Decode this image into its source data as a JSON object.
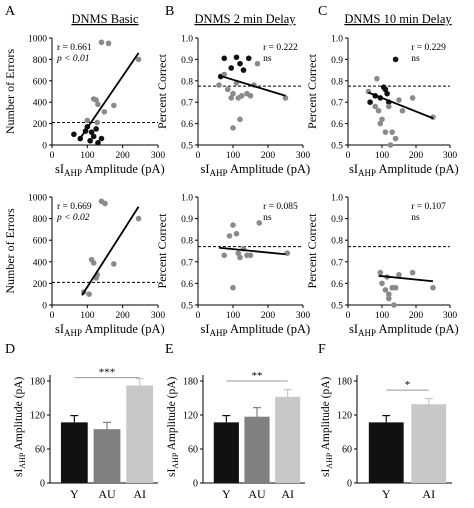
{
  "figure": {
    "panel_letters": [
      "A",
      "B",
      "C",
      "D",
      "E",
      "F"
    ],
    "column_titles": [
      "DNMS Basic",
      "DNMS 2 min Delay",
      "DNMS 10 min Delay"
    ]
  },
  "chart_data": [
    {
      "id": "A1",
      "type": "scatter",
      "title": "DNMS Basic",
      "xlabel_main": "sI",
      "xlabel_sub": "AHP",
      "xlabel_rest": " Amplitude (pA)",
      "ylabel": "Number of Errors",
      "xlim": [
        0,
        300
      ],
      "ylim": [
        0,
        1000
      ],
      "xticks": [
        0,
        100,
        200,
        300
      ],
      "yticks": [
        0,
        200,
        400,
        600,
        800,
        1000
      ],
      "reference_line_y": 210,
      "stats": [
        "r = 0.661",
        "p < 0.01"
      ],
      "regression": [
        [
          75,
          40
        ],
        [
          245,
          860
        ]
      ],
      "series": [
        {
          "color": "#111111",
          "points": [
            [
              62,
              100
            ],
            [
              80,
              60
            ],
            [
              95,
              130
            ],
            [
              100,
              170
            ],
            [
              108,
              40
            ],
            [
              118,
              80
            ],
            [
              125,
              150
            ],
            [
              130,
              20
            ],
            [
              140,
              60
            ],
            [
              112,
              120
            ]
          ]
        },
        {
          "color": "#8a8a8a",
          "points": [
            [
              100,
              230
            ],
            [
              118,
              430
            ],
            [
              125,
              420
            ],
            [
              130,
              380
            ],
            [
              140,
              960
            ],
            [
              148,
              310
            ],
            [
              160,
              950
            ],
            [
              175,
              370
            ],
            [
              245,
              800
            ],
            [
              128,
              210
            ]
          ]
        }
      ]
    },
    {
      "id": "B1",
      "type": "scatter",
      "title": "DNMS 2 min Delay",
      "xlabel_main": "sI",
      "xlabel_sub": "AHP",
      "xlabel_rest": " Amplitude (pA)",
      "ylabel": "Percent Correct",
      "xlim": [
        0,
        300
      ],
      "ylim": [
        0.5,
        1.0
      ],
      "xticks": [
        0,
        100,
        200,
        300
      ],
      "yticks": [
        0.5,
        0.6,
        0.7,
        0.8,
        0.9,
        1.0
      ],
      "reference_line_y": 0.775,
      "stats": [
        "r = 0.222",
        "ns"
      ],
      "regression": [
        [
          60,
          0.825
        ],
        [
          250,
          0.73
        ]
      ],
      "series": [
        {
          "color": "#111111",
          "points": [
            [
              65,
              0.82
            ],
            [
              75,
              0.905
            ],
            [
              95,
              0.86
            ],
            [
              110,
              0.91
            ],
            [
              120,
              0.88
            ],
            [
              130,
              0.85
            ],
            [
              145,
              0.905
            ]
          ]
        },
        {
          "color": "#8a8a8a",
          "points": [
            [
              60,
              0.78
            ],
            [
              75,
              0.83
            ],
            [
              85,
              0.76
            ],
            [
              95,
              0.72
            ],
            [
              100,
              0.74
            ],
            [
              110,
              0.79
            ],
            [
              115,
              0.72
            ],
            [
              120,
              0.62
            ],
            [
              125,
              0.73
            ],
            [
              140,
              0.74
            ],
            [
              150,
              0.73
            ],
            [
              160,
              0.78
            ],
            [
              170,
              0.88
            ],
            [
              100,
              0.58
            ],
            [
              250,
              0.72
            ]
          ]
        }
      ]
    },
    {
      "id": "C1",
      "type": "scatter",
      "title": "DNMS 10 min Delay",
      "xlabel_main": "sI",
      "xlabel_sub": "AHP",
      "xlabel_rest": " Amplitude (pA)",
      "ylabel": "Percent Correct",
      "xlim": [
        0,
        300
      ],
      "ylim": [
        0.5,
        1.0
      ],
      "xticks": [
        0,
        100,
        200,
        300
      ],
      "yticks": [
        0.5,
        0.6,
        0.7,
        0.8,
        0.9,
        1.0
      ],
      "reference_line_y": 0.775,
      "stats": [
        "r = 0.229",
        "ns"
      ],
      "regression": [
        [
          60,
          0.745
        ],
        [
          250,
          0.625
        ]
      ],
      "series": [
        {
          "color": "#111111",
          "points": [
            [
              65,
              0.7
            ],
            [
              80,
              0.73
            ],
            [
              95,
              0.72
            ],
            [
              105,
              0.77
            ],
            [
              110,
              0.76
            ],
            [
              115,
              0.74
            ],
            [
              120,
              0.7
            ],
            [
              140,
              0.9
            ]
          ]
        },
        {
          "color": "#8a8a8a",
          "points": [
            [
              60,
              0.75
            ],
            [
              80,
              0.68
            ],
            [
              90,
              0.66
            ],
            [
              95,
              0.6
            ],
            [
              100,
              0.62
            ],
            [
              110,
              0.56
            ],
            [
              120,
              0.68
            ],
            [
              130,
              0.56
            ],
            [
              140,
              0.53
            ],
            [
              150,
              0.71
            ],
            [
              160,
              0.66
            ],
            [
              190,
              0.72
            ],
            [
              250,
              0.63
            ],
            [
              125,
              0.5
            ],
            [
              85,
              0.81
            ]
          ]
        }
      ]
    },
    {
      "id": "A2",
      "type": "scatter",
      "title": "",
      "xlabel_main": "sI",
      "xlabel_sub": "AHP",
      "xlabel_rest": " Amplitude (pA)",
      "ylabel": "Number of Errors",
      "xlim": [
        0,
        300
      ],
      "ylim": [
        0,
        1000
      ],
      "xticks": [
        0,
        100,
        200,
        300
      ],
      "yticks": [
        0,
        200,
        400,
        600,
        800,
        1000
      ],
      "reference_line_y": 210,
      "stats": [
        "r = 0.669",
        "p < 0.02"
      ],
      "regression": [
        [
          85,
          90
        ],
        [
          245,
          910
        ]
      ],
      "series": [
        {
          "color": "#8a8a8a",
          "points": [
            [
              90,
              120
            ],
            [
              105,
              100
            ],
            [
              112,
              420
            ],
            [
              118,
              390
            ],
            [
              125,
              250
            ],
            [
              128,
              280
            ],
            [
              140,
              960
            ],
            [
              150,
              940
            ],
            [
              175,
              380
            ],
            [
              245,
              800
            ]
          ]
        }
      ]
    },
    {
      "id": "B2",
      "type": "scatter",
      "title": "",
      "xlabel_main": "sI",
      "xlabel_sub": "AHP",
      "xlabel_rest": " Amplitude (pA)",
      "ylabel": "Percent Correct",
      "xlim": [
        0,
        300
      ],
      "ylim": [
        0.5,
        1.0
      ],
      "xticks": [
        0,
        100,
        200,
        300
      ],
      "yticks": [
        0.5,
        0.6,
        0.7,
        0.8,
        0.9,
        1.0
      ],
      "reference_line_y": 0.77,
      "stats": [
        "r = 0.085",
        "ns"
      ],
      "regression": [
        [
          60,
          0.765
        ],
        [
          250,
          0.735
        ]
      ],
      "series": [
        {
          "color": "#8a8a8a",
          "points": [
            [
              75,
              0.73
            ],
            [
              90,
              0.82
            ],
            [
              100,
              0.87
            ],
            [
              110,
              0.83
            ],
            [
              115,
              0.74
            ],
            [
              120,
              0.72
            ],
            [
              130,
              0.76
            ],
            [
              140,
              0.73
            ],
            [
              150,
              0.73
            ],
            [
              175,
              0.88
            ],
            [
              100,
              0.58
            ],
            [
              255,
              0.74
            ]
          ]
        }
      ]
    },
    {
      "id": "C2",
      "type": "scatter",
      "title": "",
      "xlabel_main": "sI",
      "xlabel_sub": "AHP",
      "xlabel_rest": " Amplitude (pA)",
      "ylabel": "Percent Correct",
      "xlim": [
        0,
        300
      ],
      "ylim": [
        0.5,
        1.0
      ],
      "xticks": [
        0,
        100,
        200,
        300
      ],
      "yticks": [
        0.5,
        0.6,
        0.7,
        0.8,
        0.9,
        1.0
      ],
      "reference_line_y": 0.77,
      "stats": [
        "r = 0.107",
        "ns"
      ],
      "regression": [
        [
          90,
          0.635
        ],
        [
          250,
          0.61
        ]
      ],
      "series": [
        {
          "color": "#8a8a8a",
          "points": [
            [
              95,
              0.65
            ],
            [
              100,
              0.6
            ],
            [
              110,
              0.57
            ],
            [
              115,
              0.63
            ],
            [
              120,
              0.55
            ],
            [
              130,
              0.58
            ],
            [
              140,
              0.58
            ],
            [
              150,
              0.64
            ],
            [
              190,
              0.65
            ],
            [
              250,
              0.58
            ],
            [
              120,
              0.53
            ],
            [
              135,
              0.5
            ]
          ]
        }
      ]
    },
    {
      "id": "D",
      "type": "bar",
      "ylabel_main": "sI",
      "ylabel_sub": "AHP",
      "ylabel_rest": " Amplitude (pA)",
      "categories": [
        "Y",
        "AU",
        "AI"
      ],
      "values": [
        107,
        95,
        172
      ],
      "errors": [
        12,
        12,
        12
      ],
      "colors": [
        "#111111",
        "#808080",
        "#c8c8c8"
      ],
      "ylim": [
        0,
        180
      ],
      "yticks": [
        0,
        60,
        120,
        180
      ],
      "significance": {
        "from": 0,
        "to": 2,
        "label": "***",
        "y": 186
      }
    },
    {
      "id": "E",
      "type": "bar",
      "ylabel_main": "sI",
      "ylabel_sub": "AHP",
      "ylabel_rest": " Amplitude (pA)",
      "categories": [
        "Y",
        "AU",
        "AI"
      ],
      "values": [
        107,
        117,
        152
      ],
      "errors": [
        12,
        16,
        13
      ],
      "colors": [
        "#111111",
        "#808080",
        "#c8c8c8"
      ],
      "ylim": [
        0,
        180
      ],
      "yticks": [
        0,
        60,
        120,
        180
      ],
      "significance": {
        "from": 0,
        "to": 2,
        "label": "**",
        "y": 180
      }
    },
    {
      "id": "F",
      "type": "bar",
      "ylabel_main": "sI",
      "ylabel_sub": "AHP",
      "ylabel_rest": " Amplitude (pA)",
      "categories": [
        "Y",
        "AI"
      ],
      "values": [
        107,
        139
      ],
      "errors": [
        12,
        10
      ],
      "colors": [
        "#111111",
        "#c8c8c8"
      ],
      "ylim": [
        0,
        180
      ],
      "yticks": [
        0,
        60,
        120,
        180
      ],
      "significance": {
        "from": 0,
        "to": 1,
        "label": "*",
        "y": 164
      }
    }
  ]
}
